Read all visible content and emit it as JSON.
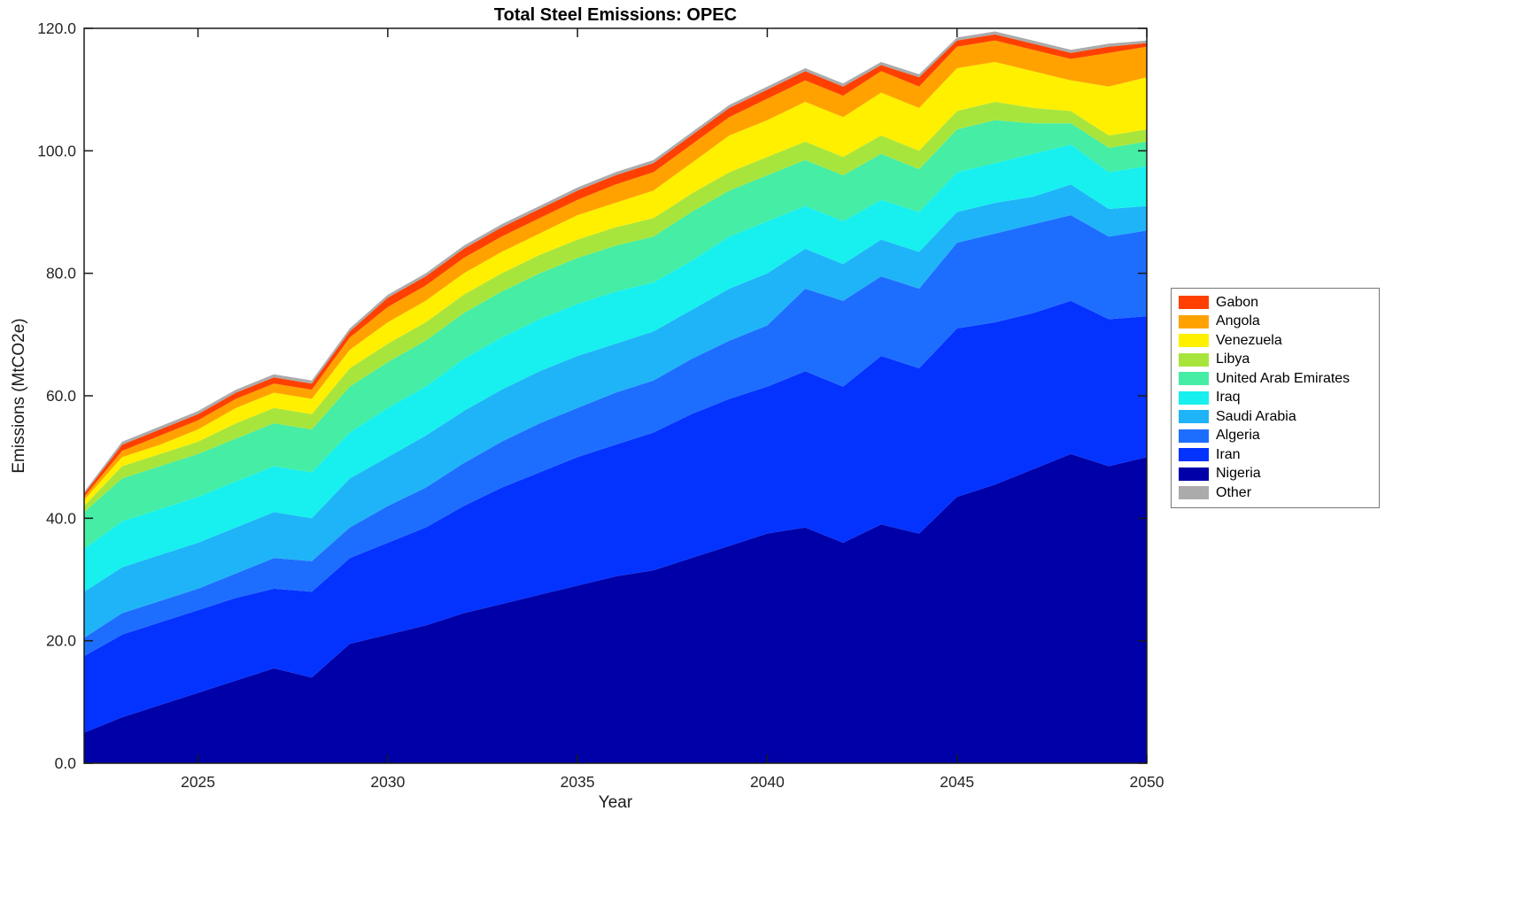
{
  "chart_data": {
    "type": "area",
    "stacked": true,
    "title": "Total Steel Emissions: OPEC",
    "xlabel": "Year",
    "ylabel": "Emissions (MtCO2e)",
    "xlim": [
      2022,
      2050
    ],
    "ylim": [
      0,
      120
    ],
    "xticks": [
      2025,
      2030,
      2035,
      2040,
      2045,
      2050
    ],
    "xtick_labels": [
      "2025",
      "2030",
      "2035",
      "2040",
      "2045",
      "2050"
    ],
    "yticks": [
      0,
      20,
      40,
      60,
      80,
      100,
      120
    ],
    "ytick_labels": [
      "0.0",
      "20.0",
      "40.0",
      "60.0",
      "80.0",
      "100.0",
      "120.0"
    ],
    "grid": false,
    "legend_position": "right-outside",
    "legend_order": [
      "Gabon",
      "Angola",
      "Venezuela",
      "Libya",
      "United Arab Emirates",
      "Iraq",
      "Saudi Arabia",
      "Algeria",
      "Iran",
      "Nigeria",
      "Other"
    ],
    "x": [
      2022,
      2023,
      2024,
      2025,
      2026,
      2027,
      2028,
      2029,
      2030,
      2031,
      2032,
      2033,
      2034,
      2035,
      2036,
      2037,
      2038,
      2039,
      2040,
      2041,
      2042,
      2043,
      2044,
      2045,
      2046,
      2047,
      2048,
      2049,
      2050
    ],
    "series": [
      {
        "name": "Nigeria",
        "color": "#0000A8",
        "values": [
          5,
          7.5,
          9.5,
          11.5,
          13.5,
          15.5,
          14,
          19.5,
          21,
          22.5,
          24.5,
          26,
          27.5,
          29,
          30.5,
          31.5,
          33.5,
          35.5,
          37.5,
          38.5,
          36,
          39,
          37.5,
          43.5,
          45.5,
          48,
          50.5,
          48.5,
          50
        ]
      },
      {
        "name": "Iran",
        "color": "#0433FF",
        "values": [
          12.5,
          13.5,
          13.5,
          13.5,
          13.5,
          13,
          14,
          14,
          15,
          16,
          17.5,
          19,
          20,
          21,
          21.5,
          22.5,
          23.5,
          24,
          24,
          25.5,
          25.5,
          27.5,
          27,
          27.5,
          26.5,
          25.5,
          25,
          24,
          23
        ]
      },
      {
        "name": "Algeria",
        "color": "#1D6EFF",
        "values": [
          3,
          3.5,
          3.5,
          3.5,
          4,
          5,
          5,
          5,
          6,
          6.5,
          7,
          7.5,
          8,
          8,
          8.5,
          8.5,
          9,
          9.5,
          10,
          13.5,
          14,
          13,
          13,
          14,
          14.5,
          14.5,
          14,
          13.5,
          14
        ]
      },
      {
        "name": "Saudi Arabia",
        "color": "#1FB4F8",
        "values": [
          7.5,
          7.5,
          7.5,
          7.5,
          7.5,
          7.5,
          7,
          8,
          8,
          8.5,
          8.5,
          8.5,
          8.5,
          8.5,
          8,
          8,
          8,
          8.5,
          8.5,
          6.5,
          6,
          6,
          6,
          5,
          5,
          4.5,
          5,
          4.5,
          4
        ]
      },
      {
        "name": "Iraq",
        "color": "#17F0EE",
        "values": [
          7,
          7.5,
          7.5,
          7.5,
          7.5,
          7.5,
          7.5,
          7.5,
          8,
          8,
          8.5,
          8.5,
          8.5,
          8.5,
          8.5,
          8,
          8,
          8.5,
          8.5,
          7,
          7,
          6.5,
          6.5,
          6.5,
          6.5,
          7,
          6.5,
          6,
          6.5
        ]
      },
      {
        "name": "United Arab Emirates",
        "color": "#45EDA5",
        "values": [
          6,
          7,
          7,
          7,
          7,
          7,
          7,
          7.5,
          7.5,
          7.5,
          7.5,
          7.5,
          7.5,
          7.5,
          7.5,
          7.5,
          8,
          7.5,
          7.5,
          7.5,
          7.5,
          7.5,
          7,
          7,
          7,
          5,
          3.5,
          4,
          4
        ]
      },
      {
        "name": "Libya",
        "color": "#A8E53C",
        "values": [
          1,
          2,
          2,
          2,
          2.5,
          2.5,
          2.5,
          3,
          3,
          3,
          3,
          3,
          3,
          3,
          3,
          3,
          3,
          3,
          3,
          3,
          3,
          3,
          3,
          3,
          3,
          2.5,
          2,
          2,
          2
        ]
      },
      {
        "name": "Venezuela",
        "color": "#FFF000",
        "values": [
          1,
          1.5,
          1.5,
          2,
          2.5,
          2.5,
          2.5,
          3,
          3.5,
          3.5,
          3.5,
          3.5,
          3.5,
          4,
          4,
          4.5,
          5,
          6,
          6,
          6.5,
          6.5,
          7,
          7,
          7,
          6.5,
          6,
          5,
          8,
          8.5
        ]
      },
      {
        "name": "Angola",
        "color": "#FFA200",
        "values": [
          0.5,
          1,
          1.5,
          1.5,
          1.5,
          1.5,
          1.5,
          2,
          2.5,
          2.5,
          2.5,
          2.5,
          2.5,
          2.5,
          3,
          3,
          3,
          3,
          3.5,
          3.5,
          3.5,
          3.5,
          3.5,
          3.5,
          3.5,
          3.5,
          3.5,
          5.5,
          5
        ]
      },
      {
        "name": "Gabon",
        "color": "#FF4000",
        "values": [
          0.5,
          1,
          1,
          1,
          1,
          1,
          1,
          1,
          1.5,
          1.5,
          1.5,
          1.5,
          1.5,
          1.5,
          1.5,
          1.5,
          1.5,
          1.5,
          1.5,
          1.5,
          1.5,
          1,
          1.5,
          1,
          1,
          1,
          1,
          1,
          0.6
        ]
      },
      {
        "name": "Other",
        "color": "#ABABAB",
        "values": [
          0.3,
          0.5,
          0.5,
          0.5,
          0.5,
          0.5,
          0.5,
          0.5,
          0.5,
          0.5,
          0.5,
          0.5,
          0.5,
          0.5,
          0.5,
          0.5,
          0.5,
          0.5,
          0.5,
          0.5,
          0.5,
          0.5,
          0.5,
          0.5,
          0.5,
          0.5,
          0.5,
          0.5,
          0.4
        ]
      }
    ],
    "axis_color": "#1a1a1a",
    "tick_label_color": "#262626"
  }
}
